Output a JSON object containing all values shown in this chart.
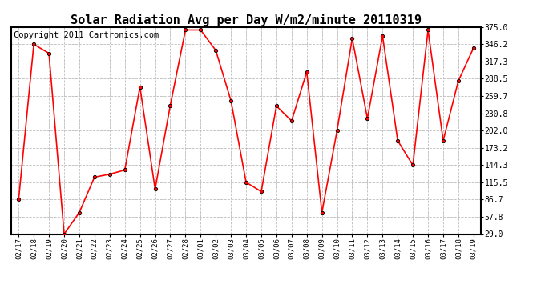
{
  "title": "Solar Radiation Avg per Day W/m2/minute 20110319",
  "copyright": "Copyright 2011 Cartronics.com",
  "dates": [
    "02/17",
    "02/18",
    "02/19",
    "02/20",
    "02/21",
    "02/22",
    "02/23",
    "02/24",
    "02/25",
    "02/26",
    "02/27",
    "02/28",
    "03/01",
    "03/02",
    "03/03",
    "03/04",
    "03/05",
    "03/06",
    "03/07",
    "03/08",
    "03/09",
    "03/10",
    "03/11",
    "03/12",
    "03/13",
    "03/14",
    "03/15",
    "03/16",
    "03/17",
    "03/18",
    "03/19"
  ],
  "values": [
    86.7,
    346.2,
    331.0,
    29.0,
    65.0,
    124.0,
    129.0,
    136.0,
    275.0,
    104.0,
    244.0,
    370.0,
    370.0,
    336.0,
    252.0,
    115.5,
    100.0,
    243.0,
    218.0,
    300.0,
    65.0,
    202.0,
    356.0,
    222.0,
    360.0,
    185.0,
    144.0,
    370.0,
    185.0,
    285.0,
    340.0
  ],
  "line_color": "#FF0000",
  "marker_color": "#000000",
  "background_color": "#FFFFFF",
  "grid_color": "#BBBBBB",
  "ylim": [
    29.0,
    375.0
  ],
  "yticks": [
    29.0,
    57.8,
    86.7,
    115.5,
    144.3,
    173.2,
    202.0,
    230.8,
    259.7,
    288.5,
    317.3,
    346.2,
    375.0
  ],
  "title_fontsize": 11,
  "copyright_fontsize": 7.5
}
